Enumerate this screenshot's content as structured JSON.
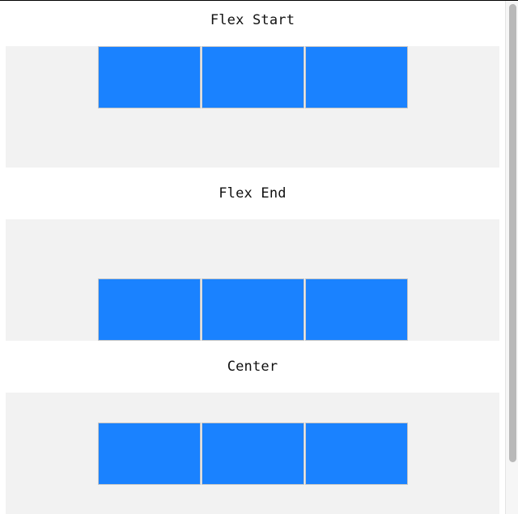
{
  "sections": [
    {
      "title": "Flex Start",
      "align": "flex-start",
      "item_count": 3
    },
    {
      "title": "Flex End",
      "align": "flex-end",
      "item_count": 3
    },
    {
      "title": "Center",
      "align": "center",
      "item_count": 3
    }
  ],
  "colors": {
    "item_fill": "#1a82ff",
    "item_border": "#c6c6c6",
    "container_background": "#f2f2f2",
    "page_background": "#ffffff"
  },
  "scrollbar": {
    "icon": "scrollbar-thumb",
    "scroll_fraction": 0.0
  }
}
